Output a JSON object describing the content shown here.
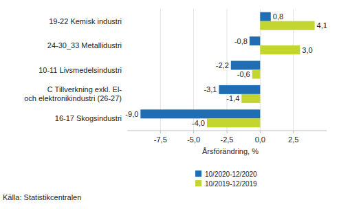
{
  "chart_data": {
    "type": "bar",
    "orientation": "horizontal",
    "categories": [
      "19-22 Kemisk industri",
      "24-30_33 Metallidustri",
      "10-11 Livsmedelsindustri",
      "C Tillverkning exkl. El-\noch elektronikindustri  (26-27)",
      "16-17 Skogsindustri"
    ],
    "series": [
      {
        "name": "10/2020-12/2020",
        "color": "#1f6eb4",
        "values": [
          0.8,
          -0.8,
          -2.2,
          -3.1,
          -9.0
        ],
        "value_labels": [
          "0,8",
          "-0,8",
          "-2,2",
          "-3,1",
          "-9,0"
        ]
      },
      {
        "name": "10/2019-12/2019",
        "color": "#c3d62f",
        "values": [
          4.1,
          3.0,
          -0.6,
          -1.4,
          -4.0
        ],
        "value_labels": [
          "4,1",
          "3,0",
          "-0,6",
          "-1,4",
          "-4,0"
        ]
      }
    ],
    "x_label": "Årsförändring, %",
    "source": "Källa: Statistikcentralen",
    "xlim": [
      -10,
      5
    ],
    "xticks": [
      {
        "value": -7.5,
        "label": "-7,5"
      },
      {
        "value": -5,
        "label": "-5,0"
      },
      {
        "value": -2.5,
        "label": "-2,5"
      },
      {
        "value": 0,
        "label": "0,0"
      },
      {
        "value": 2.5,
        "label": "2,5"
      }
    ],
    "grid": true,
    "data_labels": true,
    "legend": "bottom"
  }
}
